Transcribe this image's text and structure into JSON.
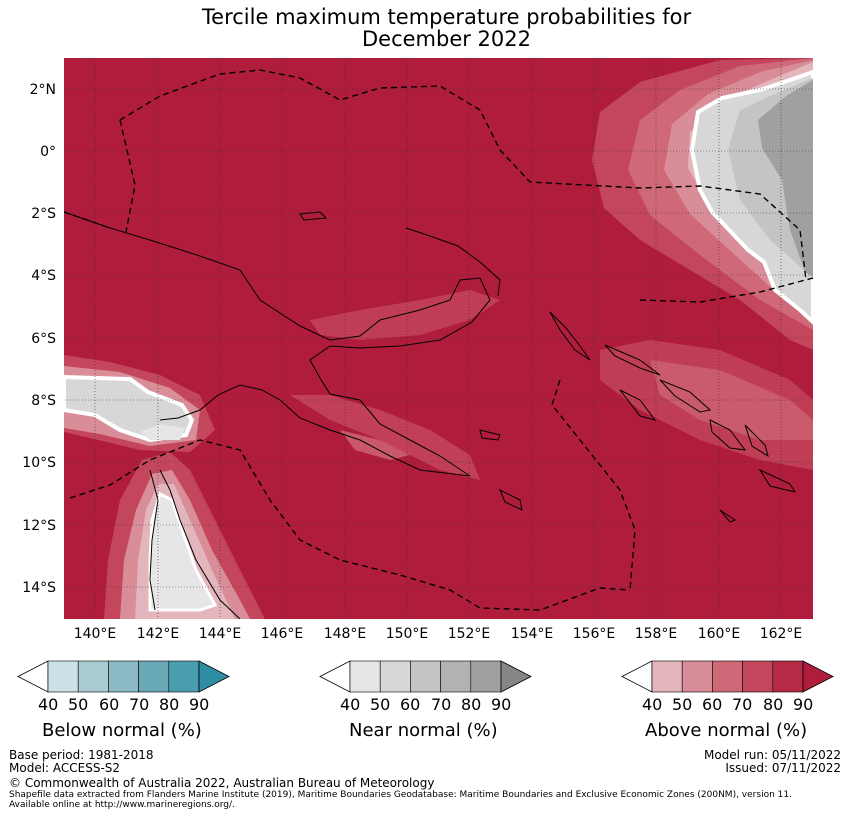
{
  "title": {
    "line1": "Tercile maximum temperature probabilities for",
    "line2": "December 2022"
  },
  "map": {
    "lat_labels": [
      "2°N",
      "0°",
      "2°S",
      "4°S",
      "6°S",
      "8°S",
      "10°S",
      "12°S",
      "14°S"
    ],
    "lon_labels": [
      "140°E",
      "142°E",
      "144°E",
      "146°E",
      "148°E",
      "150°E",
      "152°E",
      "154°E",
      "156°E",
      "158°E",
      "160°E",
      "162°E"
    ],
    "colors": {
      "above_90": "#b01c3c",
      "above_80": "#c4465c",
      "above_70": "#cf6877",
      "above_60": "#d88d98",
      "above_50": "#e2b6bc",
      "near_40": "#e6e6e6",
      "near_50": "#d7d7d7",
      "near_60": "#c4c4c4",
      "near_70": "#b0b0b0",
      "near_80": "#a0a0a0",
      "near_90": "#868686"
    }
  },
  "colorbars": {
    "below": {
      "name": "Below normal (%)",
      "ticks": [
        "40",
        "50",
        "60",
        "70",
        "80",
        "90"
      ],
      "colors": [
        "#cce2e8",
        "#abcbd2",
        "#8bb9c4",
        "#6aa9b6",
        "#4a9daf",
        "#2f8ea3"
      ]
    },
    "near": {
      "name": "Near normal (%)",
      "ticks": [
        "40",
        "50",
        "60",
        "70",
        "80",
        "90"
      ],
      "colors": [
        "#e6e6e6",
        "#d7d7d7",
        "#c4c4c4",
        "#b2b2b2",
        "#a0a0a0",
        "#868686"
      ]
    },
    "above": {
      "name": "Above normal (%)",
      "ticks": [
        "40",
        "50",
        "60",
        "70",
        "80",
        "90"
      ],
      "colors": [
        "#e2b6bc",
        "#d88d98",
        "#cf6877",
        "#c4465c",
        "#b52a44",
        "#b01c3c"
      ]
    }
  },
  "footer": {
    "base_period": "Base period: 1981-2018",
    "model": "Model: ACCESS-S2",
    "model_run": "Model run: 05/11/2022",
    "issued": "Issued: 07/11/2022",
    "copyright": "© Commonwealth of Australia 2022, Australian Bureau of Meteorology",
    "shapefile_line1": "Shapefile data extracted from Flanders Marine Institute (2019), Maritime Boundaries Geodatabase: Maritime Boundaries and Exclusive Economic Zones (200NM), version 11.",
    "shapefile_line2": "Available online at http://www.marineregions.org/."
  }
}
